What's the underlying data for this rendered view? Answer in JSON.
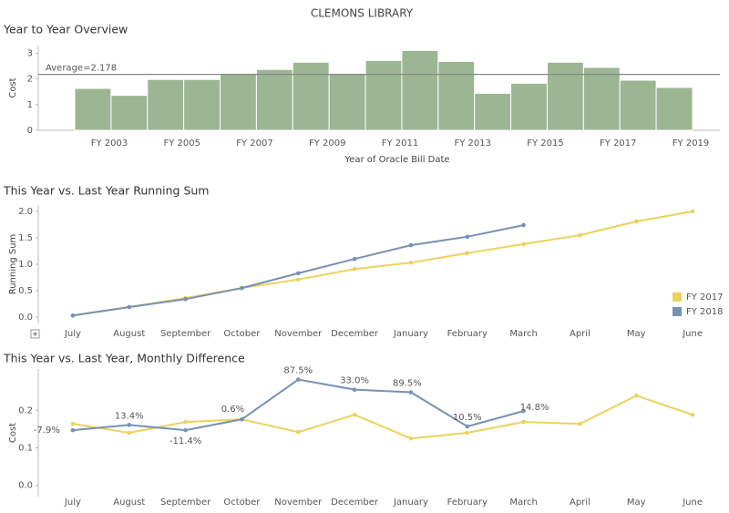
{
  "title": "CLEMONS LIBRARY",
  "chart_data": [
    {
      "type": "bar",
      "title": "Year to Year Overview",
      "y_label": "Cost",
      "x_label": "Year of Oracle Bill Date",
      "categories": [
        "FY 2003",
        null,
        "FY 2005",
        null,
        "FY 2007",
        null,
        "FY 2009",
        null,
        "FY 2011",
        null,
        "FY 2013",
        null,
        "FY 2015",
        null,
        "FY 2017",
        null,
        "FY 2019"
      ],
      "values": [
        1.63,
        1.36,
        1.98,
        1.98,
        2.22,
        2.37,
        2.65,
        2.22,
        2.72,
        3.11,
        2.68,
        1.44,
        1.83,
        2.65,
        2.45,
        1.95,
        1.67
      ],
      "color": "#9cb593",
      "ylim": [
        0,
        3.3
      ],
      "yticks": [
        0,
        1,
        2,
        3
      ],
      "reference_line": {
        "value": 2.178,
        "label": "Average=2.178"
      }
    },
    {
      "type": "line",
      "title": "This Year vs. Last Year Running Sum",
      "y_label": "Running Sum",
      "categories": [
        "July",
        "August",
        "September",
        "October",
        "November",
        "December",
        "January",
        "February",
        "March",
        "April",
        "May",
        "June"
      ],
      "series": [
        {
          "name": "FY 2017",
          "color": "#ebd35b",
          "values": [
            0.03,
            0.19,
            0.36,
            0.55,
            0.71,
            0.91,
            1.03,
            1.21,
            1.38,
            1.55,
            1.81,
            2.0
          ]
        },
        {
          "name": "FY 2018",
          "color": "#7891b4",
          "values": [
            0.03,
            0.19,
            0.34,
            0.55,
            0.83,
            1.1,
            1.36,
            1.52,
            1.74,
            null,
            null,
            null
          ]
        }
      ],
      "ylim": [
        -0.12,
        2.12
      ],
      "yticks": [
        {
          "value": 0,
          "label": "0.0"
        },
        0.5,
        {
          "value": 1,
          "label": "1.0"
        },
        1.5,
        {
          "value": 2,
          "label": "2.0"
        }
      ],
      "legend": "bottom-right"
    },
    {
      "type": "line",
      "title": "This Year vs. Last Year, Monthly Difference",
      "y_label": "Cost",
      "categories": [
        "July",
        "August",
        "September",
        "October",
        "November",
        "December",
        "January",
        "February",
        "March",
        "April",
        "May",
        "June"
      ],
      "series": [
        {
          "name": "FY 2017",
          "color": "#ebd35b",
          "values": [
            0.164,
            0.14,
            0.169,
            0.176,
            0.142,
            0.188,
            0.125,
            0.14,
            0.169,
            0.164,
            0.239,
            0.188
          ]
        },
        {
          "name": "FY 2018",
          "color": "#7891b4",
          "values": [
            0.147,
            0.161,
            0.147,
            0.176,
            0.282,
            0.255,
            0.248,
            0.157,
            0.198,
            null,
            null,
            null
          ],
          "annotations": [
            "-7.9%",
            "13.4%",
            "-11.4%",
            "0.6%",
            "87.5%",
            "33.0%",
            "89.5%",
            "10.5%",
            "14.8%"
          ]
        }
      ],
      "ylim": [
        -0.03,
        0.31
      ],
      "yticks": [
        {
          "value": 0,
          "label": "0.0"
        },
        0.1,
        0.2
      ]
    }
  ]
}
